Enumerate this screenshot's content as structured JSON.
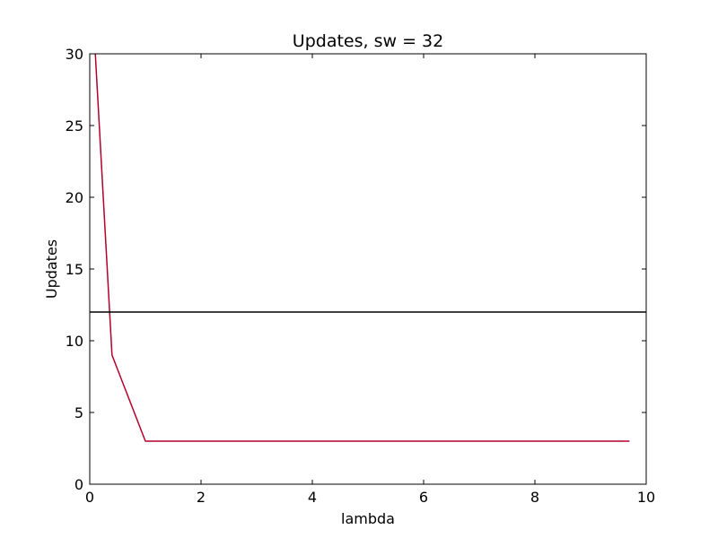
{
  "chart_data": {
    "type": "line",
    "title": "Updates, sw = 32",
    "xlabel": "lambda",
    "ylabel": "Updates",
    "xlim": [
      0,
      10
    ],
    "ylim": [
      0,
      30
    ],
    "xticks": [
      0,
      2,
      4,
      6,
      8,
      10
    ],
    "yticks": [
      0,
      5,
      10,
      15,
      20,
      25,
      30
    ],
    "grid": false,
    "series": [
      {
        "color": "#b3002a",
        "style": "solid",
        "x": [
          0.1,
          0.4,
          1.0,
          2.0,
          4.0,
          6.0,
          8.0,
          9.7
        ],
        "y": [
          30,
          9,
          3,
          3,
          3,
          3,
          3,
          3
        ]
      },
      {
        "color": "#000000",
        "style": "solid",
        "x": [
          0,
          10
        ],
        "y": [
          12,
          12
        ]
      }
    ]
  }
}
